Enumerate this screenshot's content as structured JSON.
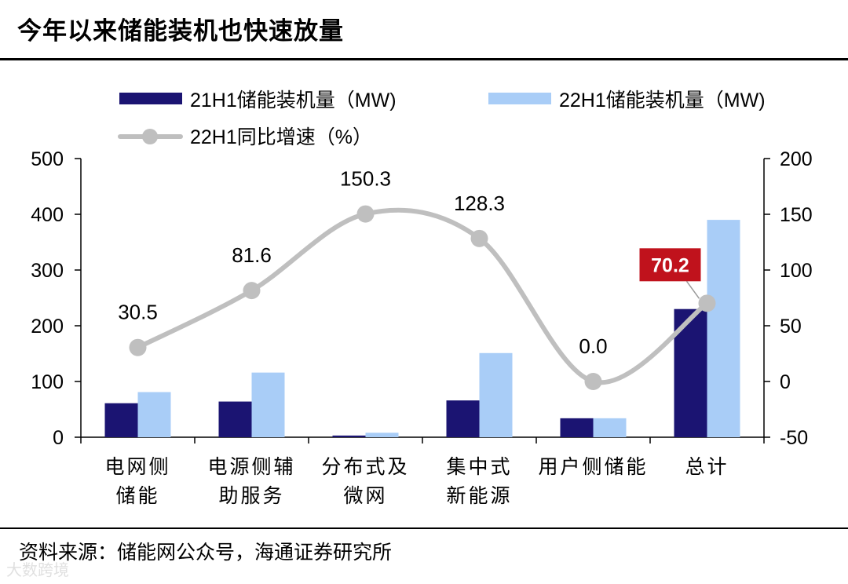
{
  "header": {
    "title": "今年以来储能装机也快速放量"
  },
  "footer": {
    "source": "资料来源：储能网公众号，海通证券研究所",
    "watermark": "大数跨境"
  },
  "colors": {
    "series1": "#1b1472",
    "series2": "#a9cdf7",
    "line": "#bfbfbf",
    "highlight": "#c0121c"
  },
  "chart_data": {
    "type": "bar",
    "categories": [
      [
        "电网侧",
        "储能"
      ],
      [
        "电源侧辅",
        "助服务"
      ],
      [
        "分布式及",
        "微网"
      ],
      [
        "集中式",
        "新能源"
      ],
      [
        "用户侧储能"
      ],
      [
        "总计"
      ]
    ],
    "series": [
      {
        "name": "21H1储能装机量（MW)",
        "axis": "left",
        "kind": "bar",
        "values": [
          61,
          64,
          3,
          66,
          34,
          230
        ]
      },
      {
        "name": "22H1储能装机量（MW)",
        "axis": "left",
        "kind": "bar",
        "values": [
          81,
          116,
          8,
          151,
          34,
          390
        ]
      },
      {
        "name": "22H1同比增速（%）",
        "axis": "right",
        "kind": "line",
        "values": [
          30.5,
          81.6,
          150.3,
          128.3,
          0.0,
          70.2
        ]
      }
    ],
    "data_labels": [
      "30.5",
      "81.6",
      "150.3",
      "128.3",
      "0.0",
      "70.2"
    ],
    "highlight_index": 5,
    "y_left": {
      "min": 0,
      "max": 500,
      "ticks": [
        "0",
        "100",
        "200",
        "300",
        "400",
        "500"
      ]
    },
    "y_right": {
      "min": -50,
      "max": 200,
      "ticks": [
        "-50",
        "0",
        "50",
        "100",
        "150",
        "200"
      ]
    },
    "legend": [
      "21H1储能装机量（MW)",
      "22H1储能装机量（MW)",
      "22H1同比增速（%）"
    ],
    "legend_position": "top"
  }
}
